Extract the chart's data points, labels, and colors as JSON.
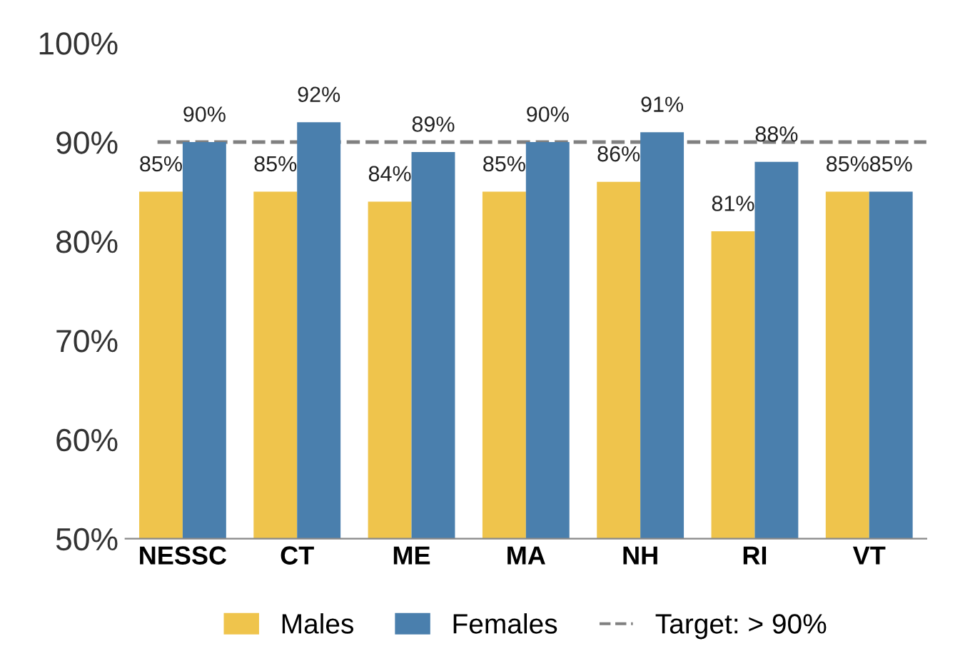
{
  "chart_data": {
    "type": "bar",
    "categories": [
      "NESSC",
      "CT",
      "ME",
      "MA",
      "NH",
      "RI",
      "VT"
    ],
    "series": [
      {
        "name": "Males",
        "color": "#efc44c",
        "values": [
          85,
          85,
          84,
          85,
          86,
          81,
          85
        ],
        "value_labels": [
          "85%",
          "85%",
          "84%",
          "85%",
          "86%",
          "81%",
          "85%"
        ]
      },
      {
        "name": "Females",
        "color": "#4a7fad",
        "values": [
          90,
          92,
          89,
          90,
          91,
          88,
          85
        ],
        "value_labels": [
          "90%",
          "92%",
          "89%",
          "90%",
          "91%",
          "88%",
          "85%"
        ]
      }
    ],
    "ylim": [
      50,
      100
    ],
    "yticks": [
      {
        "value": 50,
        "label": "50%"
      },
      {
        "value": 60,
        "label": "60%"
      },
      {
        "value": 70,
        "label": "70%"
      },
      {
        "value": 80,
        "label": "80%"
      },
      {
        "value": 90,
        "label": "90%"
      },
      {
        "value": 100,
        "label": "100%"
      }
    ],
    "ref_lines": [
      {
        "axis": "y",
        "value": 90,
        "label": "Target: > 90%",
        "color": "#808080",
        "line_style": "dashed"
      }
    ],
    "legend": "bottom",
    "grid": false
  }
}
